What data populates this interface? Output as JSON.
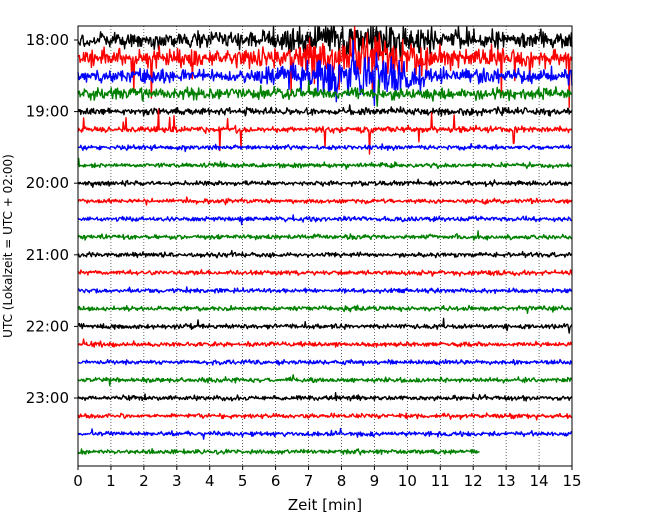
{
  "chart_data": {
    "type": "line",
    "subtype": "helicorder",
    "xlabel": "Zeit  [min]",
    "ylabel": "UTC (Lokalzeit = UTC + 02:00)",
    "xlim": [
      0,
      15
    ],
    "x_ticks": [
      0,
      1,
      2,
      3,
      4,
      5,
      6,
      7,
      8,
      9,
      10,
      11,
      12,
      13,
      14,
      15
    ],
    "y_tick_labels": [
      "18:00",
      "19:00",
      "20:00",
      "21:00",
      "22:00",
      "23:00"
    ],
    "grid": "vertical-dotted",
    "trace_colors": [
      "#000000",
      "#ff0000",
      "#0000ff",
      "#008000"
    ],
    "rows": [
      {
        "start": "18:00",
        "color": "#000000",
        "activity": "very-high"
      },
      {
        "start": "18:15",
        "color": "#ff0000",
        "activity": "very-high"
      },
      {
        "start": "18:30",
        "color": "#0000ff",
        "activity": "very-high"
      },
      {
        "start": "18:45",
        "color": "#008000",
        "activity": "high"
      },
      {
        "start": "19:00",
        "color": "#000000",
        "activity": "medium"
      },
      {
        "start": "19:15",
        "color": "#ff0000",
        "activity": "spiky"
      },
      {
        "start": "19:30",
        "color": "#0000ff",
        "activity": "low"
      },
      {
        "start": "19:45",
        "color": "#008000",
        "activity": "low"
      },
      {
        "start": "20:00",
        "color": "#000000",
        "activity": "low"
      },
      {
        "start": "20:15",
        "color": "#ff0000",
        "activity": "low"
      },
      {
        "start": "20:30",
        "color": "#0000ff",
        "activity": "low"
      },
      {
        "start": "20:45",
        "color": "#008000",
        "activity": "low"
      },
      {
        "start": "21:00",
        "color": "#000000",
        "activity": "low"
      },
      {
        "start": "21:15",
        "color": "#ff0000",
        "activity": "low"
      },
      {
        "start": "21:30",
        "color": "#0000ff",
        "activity": "low"
      },
      {
        "start": "21:45",
        "color": "#008000",
        "activity": "low"
      },
      {
        "start": "22:00",
        "color": "#000000",
        "activity": "low"
      },
      {
        "start": "22:15",
        "color": "#ff0000",
        "activity": "low"
      },
      {
        "start": "22:30",
        "color": "#0000ff",
        "activity": "low"
      },
      {
        "start": "22:45",
        "color": "#008000",
        "activity": "low"
      },
      {
        "start": "23:00",
        "color": "#000000",
        "activity": "low"
      },
      {
        "start": "23:15",
        "color": "#ff0000",
        "activity": "low"
      },
      {
        "start": "23:30",
        "color": "#0000ff",
        "activity": "low"
      },
      {
        "start": "23:45",
        "color": "#008000",
        "activity": "low",
        "end_minute": 12.2
      }
    ]
  }
}
